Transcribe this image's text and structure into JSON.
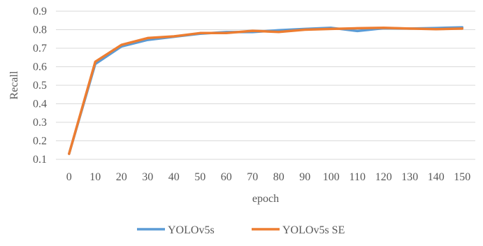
{
  "chart_data": {
    "type": "line",
    "title": "",
    "xlabel": "epoch",
    "ylabel": "Recall",
    "ylim": [
      0.1,
      0.9
    ],
    "yticks": [
      "0.1",
      "0.2",
      "0.3",
      "0.4",
      "0.5",
      "0.6",
      "0.7",
      "0.8",
      "0.9"
    ],
    "grid": true,
    "legend_position": "bottom",
    "categories": [
      "0",
      "10",
      "20",
      "30",
      "40",
      "50",
      "60",
      "70",
      "80",
      "90",
      "100",
      "110",
      "120",
      "130",
      "140",
      "150"
    ],
    "series": [
      {
        "name": "YOLOv5s",
        "color": "#5b9bd5",
        "values": [
          0.13,
          0.615,
          0.71,
          0.745,
          0.762,
          0.778,
          0.787,
          0.787,
          0.797,
          0.804,
          0.81,
          0.793,
          0.808,
          0.806,
          0.809,
          0.813
        ]
      },
      {
        "name": "YOLOv5s SE",
        "color": "#ed7d31",
        "values": [
          0.13,
          0.627,
          0.718,
          0.755,
          0.764,
          0.782,
          0.782,
          0.794,
          0.788,
          0.8,
          0.804,
          0.808,
          0.81,
          0.806,
          0.803,
          0.806
        ]
      }
    ]
  }
}
